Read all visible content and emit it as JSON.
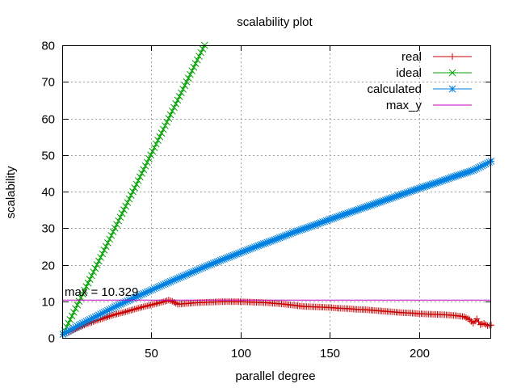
{
  "chart_data": {
    "type": "line",
    "title": "scalability plot",
    "xlabel": "parallel degree",
    "ylabel": "scalability",
    "xlim": [
      1,
      240
    ],
    "ylim": [
      0,
      80
    ],
    "xticks": [
      50,
      100,
      150,
      200
    ],
    "yticks": [
      0,
      10,
      20,
      30,
      40,
      50,
      60,
      70,
      80
    ],
    "grid": true,
    "legend_position": "top-right",
    "annotation": {
      "text": "max = 10.329",
      "x": 1,
      "y": 10.329
    },
    "series": [
      {
        "name": "real",
        "color": "#cc0000",
        "marker": "plus",
        "x": [
          1,
          5,
          10,
          15,
          20,
          25,
          30,
          35,
          40,
          45,
          50,
          55,
          58,
          60,
          62,
          65,
          70,
          75,
          80,
          85,
          90,
          95,
          100,
          105,
          110,
          115,
          120,
          125,
          130,
          135,
          140,
          145,
          150,
          155,
          160,
          165,
          170,
          175,
          180,
          185,
          190,
          195,
          200,
          205,
          210,
          215,
          220,
          225,
          228,
          230,
          232,
          234,
          236,
          238,
          240
        ],
        "y": [
          1.0,
          1.8,
          2.9,
          3.9,
          4.8,
          5.6,
          6.4,
          7.0,
          7.7,
          8.4,
          9.0,
          9.6,
          10.0,
          10.33,
          10.0,
          9.2,
          9.4,
          9.6,
          9.7,
          9.8,
          9.9,
          9.9,
          9.9,
          9.8,
          9.7,
          9.6,
          9.4,
          9.2,
          8.9,
          8.6,
          8.5,
          8.4,
          8.3,
          8.1,
          8.0,
          7.8,
          7.7,
          7.5,
          7.3,
          7.1,
          6.9,
          6.8,
          6.6,
          6.5,
          6.4,
          6.3,
          6.1,
          5.8,
          5.0,
          4.0,
          5.2,
          3.6,
          4.0,
          3.3,
          3.5
        ]
      },
      {
        "name": "ideal",
        "color": "#00a000",
        "marker": "cross",
        "x": [
          1,
          80
        ],
        "y": [
          1,
          80
        ]
      },
      {
        "name": "calculated",
        "color": "#0080e0",
        "marker": "star",
        "x": [
          1,
          10,
          20,
          30,
          40,
          50,
          60,
          70,
          80,
          90,
          100,
          110,
          120,
          130,
          140,
          150,
          160,
          170,
          180,
          190,
          200,
          210,
          220,
          230,
          240
        ],
        "y": [
          1.0,
          3.5,
          6.0,
          8.5,
          10.8,
          13.0,
          15.2,
          17.3,
          19.4,
          21.4,
          23.3,
          25.2,
          27.0,
          28.9,
          30.6,
          32.4,
          34.1,
          35.8,
          37.5,
          39.2,
          40.9,
          42.5,
          44.2,
          45.8,
          48.3
        ]
      },
      {
        "name": "max_y",
        "color": "#c000c0",
        "marker": "none",
        "x": [
          1,
          240
        ],
        "y": [
          10.329,
          10.329
        ]
      }
    ]
  }
}
